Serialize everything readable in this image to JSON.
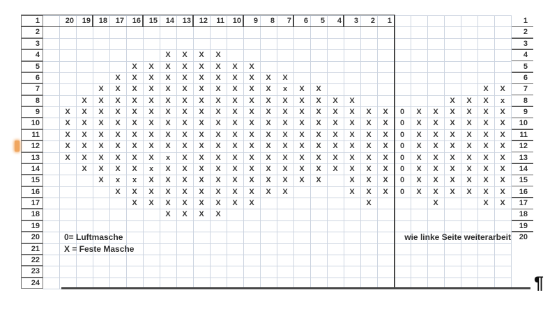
{
  "sheet": {
    "column_headers": [
      "20",
      "19",
      "18",
      "17",
      "16",
      "15",
      "14",
      "13",
      "12",
      "11",
      "10",
      "9",
      "8",
      "7",
      "6",
      "5",
      "4",
      "3",
      "2",
      "1"
    ],
    "left_row_numbers": [
      "1",
      "2",
      "3",
      "4",
      "5",
      "6",
      "7",
      "8",
      "9",
      "10",
      "11",
      "12",
      "13",
      "14",
      "15",
      "16",
      "17",
      "18",
      "19",
      "20",
      "21",
      "22",
      "23",
      "24"
    ],
    "right_row_numbers": [
      "1",
      "2",
      "3",
      "4",
      "5",
      "6",
      "7",
      "8",
      "9",
      "10",
      "11",
      "12",
      "13",
      "14",
      "15",
      "16",
      "17",
      "18",
      "19",
      "20"
    ],
    "empty_marker": ".",
    "pattern_rows": [
      {
        "row": 4,
        "cells": "......XXXX................."
      },
      {
        "row": 5,
        "cells": "....XXXXXXXX..............."
      },
      {
        "row": 6,
        "cells": "...XXXXXXXXXXX............."
      },
      {
        "row": 7,
        "cells": "..XXXXXXXXXXXxXX.........XX"
      },
      {
        "row": 8,
        "cells": ".XXXXXXXXXXXXXXXXX.....XXXx"
      },
      {
        "row": 9,
        "cells": "XXXXXXXXXXXXXXXXXXXX0XXXXXX"
      },
      {
        "row": 10,
        "cells": "XXXXXXXXXXXXXXXXXXXX0XXXXXX"
      },
      {
        "row": 11,
        "cells": "XXXXXXXXXXXXXXXXXXXX0XXXXXX"
      },
      {
        "row": 12,
        "cells": "XXXXXXXXXXXXXXXXXXXX0XXXXXX"
      },
      {
        "row": 13,
        "cells": "XXXXXXxXXXXXXXXXXXXX0XXXXXX"
      },
      {
        "row": 14,
        "cells": ".XXXXxXXXXXXXXXXXXXX0XXXXXX"
      },
      {
        "row": 15,
        "cells": "..XxxXXXXXXXXXXX.XXX0XXXXXX"
      },
      {
        "row": 16,
        "cells": "...XXXXXXXXXXX...XXX0XXXXXX"
      },
      {
        "row": 17,
        "cells": "....XXXXXXXX......X...X..XX"
      },
      {
        "row": 18,
        "cells": "......XXXX................."
      }
    ],
    "legend_lines": [
      "0= Luftmasche",
      "X = Feste Masche"
    ],
    "right_note": "wie linke Seite weiterarbeit",
    "pilcrow": "¶",
    "symbols": {
      "chain_stitch": "0",
      "single_crochet": "X"
    },
    "colors": {
      "background": "#ffffff",
      "gridline": "#ccd4e0",
      "border_dark": "#474747",
      "border_medium": "#6f6f6f",
      "underline": "#5a5a5a",
      "text": "#3a3a3a",
      "header_text": "#333333",
      "selection_orange": "#f0a660",
      "pilcrow": "#101010"
    }
  }
}
